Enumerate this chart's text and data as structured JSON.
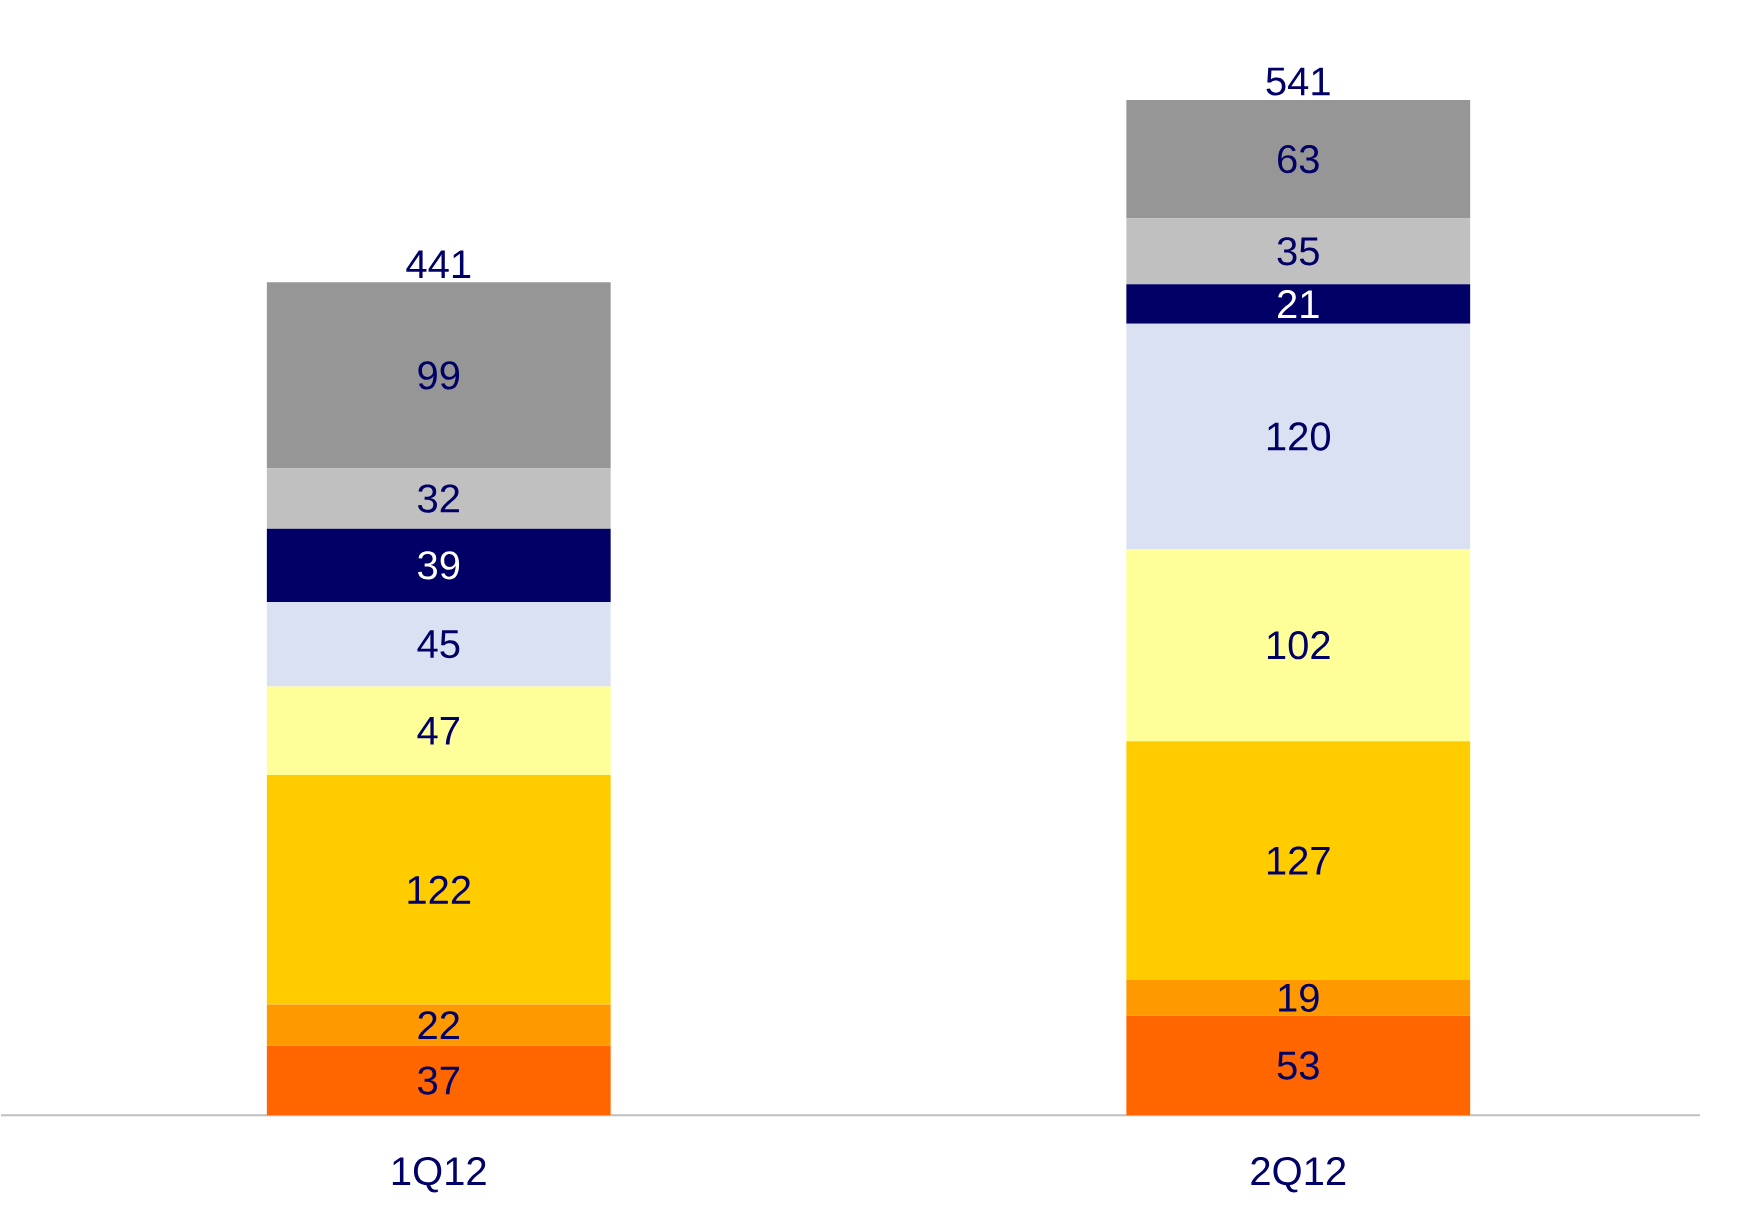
{
  "chart_data": {
    "type": "bar",
    "stacked": true,
    "data_labels": true,
    "categories": [
      "1Q12",
      "2Q12"
    ],
    "series": [
      {
        "color": "#ff6600",
        "values": [
          37,
          53
        ]
      },
      {
        "color": "#ff9900",
        "values": [
          22,
          19
        ]
      },
      {
        "color": "#ffcc00",
        "values": [
          122,
          127
        ]
      },
      {
        "color": "#ffff99",
        "values": [
          47,
          102
        ]
      },
      {
        "color": "#d9e1f2",
        "values": [
          45,
          120
        ]
      },
      {
        "color": "#000066",
        "values": [
          39,
          21
        ]
      },
      {
        "color": "#c0c0c0",
        "values": [
          32,
          35
        ]
      },
      {
        "color": "#969696",
        "values": [
          99,
          63
        ]
      }
    ],
    "totals": [
      "441",
      "541"
    ]
  }
}
